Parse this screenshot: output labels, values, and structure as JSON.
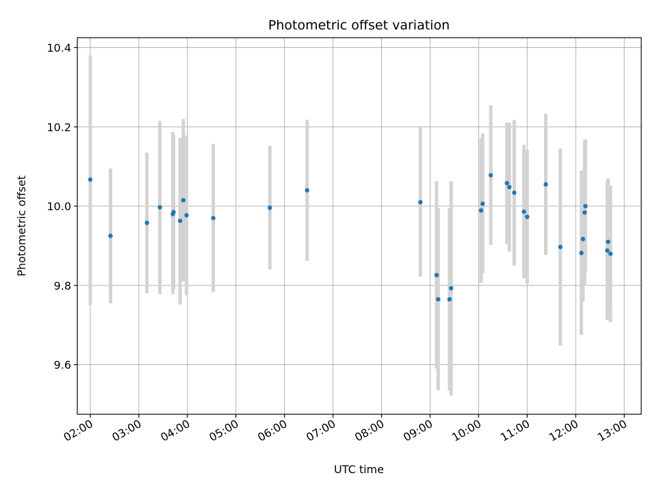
{
  "chart_data": {
    "type": "scatter",
    "title": "Photometric offset variation",
    "xlabel": "UTC time",
    "ylabel": "Photometric offset",
    "grid": true,
    "ylim": [
      9.475,
      10.425
    ],
    "xlim": [
      "01:44",
      "13:21"
    ],
    "x_ticks": [
      "02:00",
      "03:00",
      "04:00",
      "05:00",
      "06:00",
      "07:00",
      "08:00",
      "09:00",
      "10:00",
      "11:00",
      "12:00",
      "13:00"
    ],
    "y_ticks": [
      9.6,
      9.8,
      10.0,
      10.2,
      10.4
    ],
    "point_color": "#1f77b4",
    "errorbar_color": "#d3d3d3",
    "points": [
      {
        "x": "02:00",
        "y": 10.067,
        "err_low": 9.75,
        "err_high": 10.38
      },
      {
        "x": "02:25",
        "y": 9.925,
        "err_low": 9.755,
        "err_high": 10.095
      },
      {
        "x": "03:10",
        "y": 9.958,
        "err_low": 9.78,
        "err_high": 10.135
      },
      {
        "x": "03:26",
        "y": 9.997,
        "err_low": 9.778,
        "err_high": 10.215
      },
      {
        "x": "03:42",
        "y": 9.98,
        "err_low": 9.778,
        "err_high": 10.187
      },
      {
        "x": "03:43",
        "y": 9.985,
        "err_low": 9.79,
        "err_high": 10.18
      },
      {
        "x": "03:51",
        "y": 9.963,
        "err_low": 9.752,
        "err_high": 10.172
      },
      {
        "x": "03:55",
        "y": 10.015,
        "err_low": 9.81,
        "err_high": 10.22
      },
      {
        "x": "03:59",
        "y": 9.977,
        "err_low": 9.775,
        "err_high": 10.178
      },
      {
        "x": "04:32",
        "y": 9.97,
        "err_low": 9.783,
        "err_high": 10.157
      },
      {
        "x": "05:42",
        "y": 9.996,
        "err_low": 9.84,
        "err_high": 10.152
      },
      {
        "x": "06:28",
        "y": 10.04,
        "err_low": 9.862,
        "err_high": 10.218
      },
      {
        "x": "08:48",
        "y": 10.01,
        "err_low": 9.822,
        "err_high": 10.198
      },
      {
        "x": "09:08",
        "y": 9.826,
        "err_low": 9.59,
        "err_high": 10.063
      },
      {
        "x": "09:10",
        "y": 9.765,
        "err_low": 9.535,
        "err_high": 9.995
      },
      {
        "x": "09:24",
        "y": 9.765,
        "err_low": 9.535,
        "err_high": 9.995
      },
      {
        "x": "09:26",
        "y": 9.793,
        "err_low": 9.522,
        "err_high": 10.063
      },
      {
        "x": "10:03",
        "y": 9.989,
        "err_low": 9.806,
        "err_high": 10.172
      },
      {
        "x": "10:05",
        "y": 10.006,
        "err_low": 9.83,
        "err_high": 10.183
      },
      {
        "x": "10:15",
        "y": 10.078,
        "err_low": 9.902,
        "err_high": 10.254
      },
      {
        "x": "10:35",
        "y": 10.058,
        "err_low": 9.905,
        "err_high": 10.211
      },
      {
        "x": "10:38",
        "y": 10.048,
        "err_low": 9.885,
        "err_high": 10.21
      },
      {
        "x": "10:44",
        "y": 10.034,
        "err_low": 9.85,
        "err_high": 10.217
      },
      {
        "x": "10:56",
        "y": 9.986,
        "err_low": 9.818,
        "err_high": 10.155
      },
      {
        "x": "11:00",
        "y": 9.973,
        "err_low": 9.805,
        "err_high": 10.142
      },
      {
        "x": "11:23",
        "y": 10.055,
        "err_low": 9.877,
        "err_high": 10.233
      },
      {
        "x": "11:41",
        "y": 9.897,
        "err_low": 9.648,
        "err_high": 10.145
      },
      {
        "x": "12:07",
        "y": 9.882,
        "err_low": 9.675,
        "err_high": 10.09
      },
      {
        "x": "12:09",
        "y": 9.917,
        "err_low": 9.76,
        "err_high": 10.075
      },
      {
        "x": "12:11",
        "y": 9.984,
        "err_low": 9.8,
        "err_high": 10.168
      },
      {
        "x": "12:12",
        "y": 10.0,
        "err_low": 9.832,
        "err_high": 10.168
      },
      {
        "x": "12:39",
        "y": 9.888,
        "err_low": 9.713,
        "err_high": 10.063
      },
      {
        "x": "12:40",
        "y": 9.91,
        "err_low": 9.75,
        "err_high": 10.07
      },
      {
        "x": "12:43",
        "y": 9.88,
        "err_low": 9.707,
        "err_high": 10.052
      }
    ]
  }
}
